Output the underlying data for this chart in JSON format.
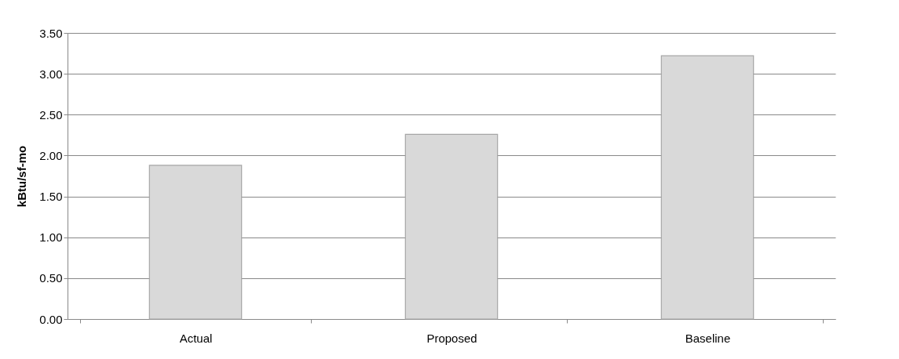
{
  "chart_data": {
    "type": "bar",
    "ylabel": "kBtu/sf-mo",
    "categories": [
      "Actual",
      "Proposed",
      "Baseline"
    ],
    "values": [
      1.88,
      2.26,
      3.22
    ],
    "color": "#d9d9d9",
    "ylim": [
      0,
      3.5
    ],
    "yticks": [
      {
        "value": 0,
        "label": "0.00"
      },
      {
        "value": 0.5,
        "label": "0.50"
      },
      {
        "value": 1,
        "label": "1.00"
      },
      {
        "value": 1.5,
        "label": "1.50"
      },
      {
        "value": 2,
        "label": "2.00"
      },
      {
        "value": 2.5,
        "label": "2.50"
      },
      {
        "value": 3,
        "label": "3.00"
      },
      {
        "value": 3.5,
        "label": "3.50"
      }
    ],
    "grid": "y"
  }
}
